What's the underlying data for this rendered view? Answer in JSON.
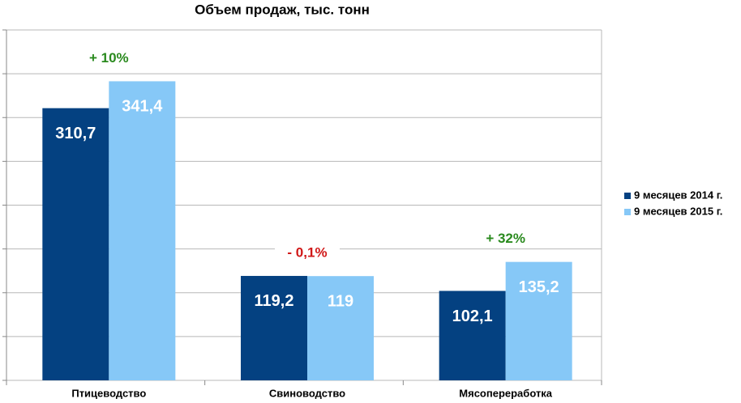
{
  "chart_data": {
    "type": "bar",
    "title": "Объем продаж, тыс. тонн",
    "categories": [
      "Птицеводство",
      "Свиноводство",
      "Мясопереработка"
    ],
    "series": [
      {
        "name": "9 месяцев 2014 г.",
        "color": "#044181",
        "values": [
          310.7,
          119.2,
          102.1
        ],
        "value_labels": [
          "310,7",
          "119,2",
          "102,1"
        ]
      },
      {
        "name": "9 месяцев 2015 г.",
        "color": "#86c8f7",
        "values": [
          341.4,
          119,
          135.2
        ],
        "value_labels": [
          "341,4",
          "119",
          "135,2"
        ]
      }
    ],
    "change_labels": [
      "+ 10%",
      "- 0,1%",
      "+ 32%"
    ],
    "change_colors": [
      "#2a8a1e",
      "#d01818",
      "#2a8a1e"
    ],
    "ylim": [
      0,
      400
    ],
    "yticks": [
      0,
      50,
      100,
      150,
      200,
      250,
      300,
      350,
      400
    ],
    "grid": true,
    "legend": "right"
  }
}
